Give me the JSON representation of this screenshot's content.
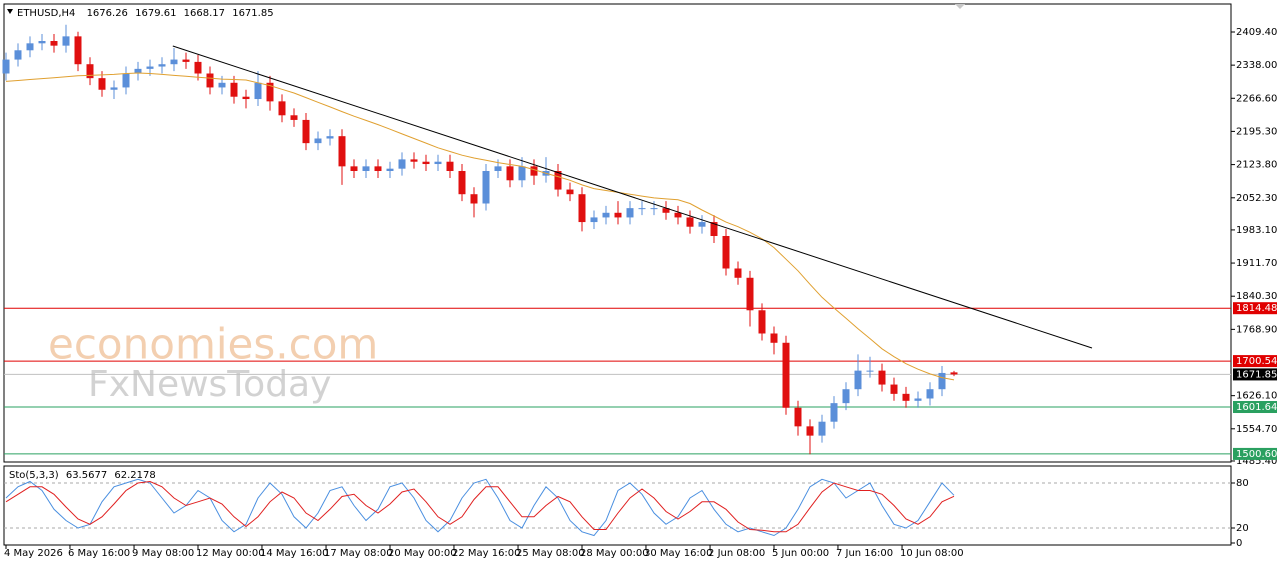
{
  "chart_data": {
    "type": "candlestick",
    "header": {
      "symbol": "ETHUSD,H4",
      "open": 1676.26,
      "high": 1679.61,
      "low": 1668.17,
      "close": 1671.85
    },
    "open": [
      2320,
      2350,
      2370,
      2385,
      2390,
      2380,
      2400,
      2340,
      2310,
      2285,
      2290,
      2320,
      2330,
      2335,
      2340,
      2350,
      2345,
      2320,
      2290,
      2300,
      2270,
      2265,
      2300,
      2260,
      2230,
      2220,
      2170,
      2180,
      2185,
      2120,
      2110,
      2120,
      2110,
      2115,
      2135,
      2130,
      2125,
      2130,
      2110,
      2060,
      2040,
      2110,
      2120,
      2090,
      2120,
      2100,
      2110,
      2070,
      2060,
      2000,
      2010,
      2020,
      2010,
      2030,
      2030,
      2030,
      2020,
      2010,
      1990,
      2000,
      1970,
      1900,
      1880,
      1810,
      1760,
      1740,
      1600,
      1560,
      1540,
      1570,
      1610,
      1640,
      1680,
      1680,
      1650,
      1630,
      1615,
      1620,
      1640,
      1676.26
    ],
    "high": [
      2365,
      2385,
      2400,
      2405,
      2405,
      2425,
      2410,
      2355,
      2325,
      2305,
      2335,
      2345,
      2350,
      2355,
      2375,
      2365,
      2360,
      2335,
      2315,
      2315,
      2285,
      2325,
      2315,
      2275,
      2245,
      2235,
      2195,
      2200,
      2200,
      2135,
      2135,
      2135,
      2130,
      2150,
      2150,
      2145,
      2145,
      2145,
      2125,
      2075,
      2125,
      2135,
      2135,
      2140,
      2135,
      2140,
      2125,
      2085,
      2075,
      2025,
      2035,
      2045,
      2045,
      2045,
      2045,
      2045,
      2035,
      2025,
      2015,
      2015,
      1985,
      1915,
      1895,
      1825,
      1775,
      1755,
      1615,
      1575,
      1585,
      1625,
      1655,
      1715,
      1710,
      1695,
      1665,
      1645,
      1635,
      1655,
      1690,
      1679.61
    ],
    "low": [
      2305,
      2335,
      2355,
      2370,
      2365,
      2365,
      2325,
      2295,
      2270,
      2265,
      2275,
      2305,
      2315,
      2320,
      2325,
      2330,
      2305,
      2275,
      2275,
      2255,
      2245,
      2250,
      2240,
      2215,
      2205,
      2155,
      2155,
      2165,
      2080,
      2095,
      2095,
      2095,
      2095,
      2100,
      2115,
      2110,
      2110,
      2095,
      2045,
      2010,
      2025,
      2095,
      2075,
      2075,
      2080,
      2085,
      2055,
      2045,
      1980,
      1985,
      1995,
      1995,
      1995,
      2015,
      2015,
      2005,
      1995,
      1975,
      1975,
      1955,
      1885,
      1865,
      1775,
      1745,
      1715,
      1585,
      1540,
      1500,
      1525,
      1555,
      1595,
      1625,
      1665,
      1635,
      1615,
      1600,
      1600,
      1605,
      1625,
      1668.17
    ],
    "close": [
      2350,
      2370,
      2385,
      2390,
      2380,
      2400,
      2340,
      2310,
      2285,
      2290,
      2320,
      2330,
      2335,
      2340,
      2350,
      2345,
      2320,
      2290,
      2300,
      2270,
      2265,
      2300,
      2260,
      2230,
      2220,
      2170,
      2180,
      2185,
      2120,
      2110,
      2120,
      2110,
      2115,
      2135,
      2130,
      2125,
      2130,
      2110,
      2060,
      2040,
      2110,
      2120,
      2090,
      2120,
      2100,
      2110,
      2070,
      2060,
      2000,
      2010,
      2020,
      2010,
      2030,
      2030,
      2030,
      2020,
      2010,
      1990,
      2000,
      1970,
      1900,
      1880,
      1810,
      1760,
      1740,
      1600,
      1560,
      1540,
      1570,
      1610,
      1640,
      1680,
      1680,
      1650,
      1630,
      1615,
      1620,
      1640,
      1675,
      1671.85
    ],
    "bull_color": "#5b8fd9",
    "bear_color": "#e01010",
    "ylim": [
      1483.2,
      2469.7
    ],
    "yticks": [
      {
        "value": 2409.4,
        "label": "2409.40"
      },
      {
        "value": 2338,
        "label": "2338.00"
      },
      {
        "value": 2266.6,
        "label": "2266.60"
      },
      {
        "value": 2195.3,
        "label": "2195.30"
      },
      {
        "value": 2123.8,
        "label": "2123.80"
      },
      {
        "value": 2052.3,
        "label": "2052.30"
      },
      {
        "value": 1983.1,
        "label": "1983.10"
      },
      {
        "value": 1911.7,
        "label": "1911.70"
      },
      {
        "value": 1840.3,
        "label": "1840.30"
      },
      {
        "value": 1768.9,
        "label": "1768.90"
      },
      {
        "value": 1626.1,
        "label": "1626.10"
      },
      {
        "value": 1554.7,
        "label": "1554.70"
      },
      {
        "value": 1485.4,
        "label": "1485.40"
      }
    ],
    "xticks": [
      {
        "value": 0,
        "label": "4 May 2026"
      },
      {
        "value": 5.33,
        "label": "6 May 16:00"
      },
      {
        "value": 10.67,
        "label": "9 May 08:00"
      },
      {
        "value": 16,
        "label": "12 May 00:00"
      },
      {
        "value": 21.33,
        "label": "14 May 16:00"
      },
      {
        "value": 26.67,
        "label": "17 May 08:00"
      },
      {
        "value": 32,
        "label": "20 May 00:00"
      },
      {
        "value": 37.33,
        "label": "22 May 16:00"
      },
      {
        "value": 42.67,
        "label": "25 May 08:00"
      },
      {
        "value": 48,
        "label": "28 May 00:00"
      },
      {
        "value": 53.33,
        "label": "30 May 16:00"
      },
      {
        "value": 58.67,
        "label": "2 Jun 08:00"
      },
      {
        "value": 64,
        "label": "5 Jun 00:00"
      },
      {
        "value": 69.33,
        "label": "7 Jun 16:00"
      },
      {
        "value": 74.67,
        "label": "10 Jun 08:00"
      }
    ],
    "ma": {
      "color": "#e0a030",
      "values": [
        2303,
        2305,
        2307,
        2309,
        2311,
        2313,
        2315,
        2316,
        2317,
        2318,
        2320,
        2321,
        2320,
        2318,
        2316,
        2314,
        2312,
        2310,
        2308,
        2307,
        2306,
        2300,
        2294,
        2286,
        2278,
        2268,
        2258,
        2248,
        2238,
        2228,
        2219,
        2210,
        2200,
        2190,
        2180,
        2170,
        2160,
        2152,
        2144,
        2138,
        2133,
        2128,
        2124,
        2120,
        2113,
        2105,
        2098,
        2090,
        2080,
        2072,
        2068,
        2064,
        2060,
        2056,
        2052,
        2050,
        2048,
        2040,
        2026,
        2013,
        2000,
        1990,
        1978,
        1964,
        1945,
        1920,
        1895,
        1866,
        1838,
        1815,
        1793,
        1770,
        1749,
        1727,
        1710,
        1695,
        1683,
        1673,
        1665,
        1660
      ]
    },
    "trendline": {
      "x": [
        13.9,
        90.5
      ],
      "y": [
        2379.2,
        1728.8
      ],
      "color": "#000000"
    },
    "levels": [
      {
        "value": 1814.48,
        "color": "#e00000",
        "label_fill": "#e00000"
      },
      {
        "value": 1700.54,
        "color": "#e00000",
        "label_fill": "#e00000"
      },
      {
        "value": 1671.85,
        "color": "#c0c0c0",
        "label_fill": "#000000"
      },
      {
        "value": 1601.64,
        "color": "#2aa060",
        "label_fill": "#2aa060"
      },
      {
        "value": 1500.6,
        "label": "1500.60",
        "color": "#2aa060",
        "label_fill": "#2aa060"
      }
    ],
    "watermarks": [
      "economies.com",
      "FxNewsToday"
    ],
    "indicator": {
      "name": "Sto(5,3,3)",
      "ylim": [
        0,
        100
      ],
      "yticks": [
        0,
        20,
        80
      ],
      "levels": [
        20,
        80
      ],
      "series": [
        {
          "color": "#4a8fe0",
          "values": [
            60,
            75,
            82,
            70,
            45,
            30,
            20,
            25,
            55,
            75,
            80,
            85,
            80,
            60,
            40,
            50,
            70,
            60,
            30,
            15,
            25,
            60,
            80,
            65,
            35,
            20,
            40,
            70,
            75,
            50,
            30,
            45,
            75,
            80,
            60,
            30,
            15,
            30,
            60,
            80,
            85,
            60,
            30,
            20,
            50,
            75,
            60,
            30,
            15,
            10,
            30,
            70,
            80,
            65,
            40,
            25,
            35,
            60,
            70,
            45,
            25,
            15,
            20,
            15,
            10,
            20,
            45,
            75,
            85,
            80,
            60,
            70,
            80,
            50,
            25,
            20,
            30,
            55,
            80,
            63.5677
          ]
        },
        {
          "color": "#e02020",
          "values": [
            55,
            65,
            75,
            75,
            65,
            48,
            32,
            25,
            35,
            52,
            70,
            80,
            82,
            75,
            60,
            50,
            55,
            60,
            52,
            35,
            22,
            35,
            55,
            68,
            60,
            40,
            30,
            45,
            62,
            65,
            50,
            40,
            52,
            68,
            72,
            55,
            35,
            25,
            35,
            58,
            75,
            75,
            55,
            35,
            35,
            50,
            62,
            55,
            35,
            18,
            18,
            40,
            60,
            72,
            60,
            42,
            32,
            42,
            55,
            55,
            45,
            28,
            18,
            17,
            15,
            15,
            25,
            47,
            68,
            80,
            75,
            70,
            70,
            65,
            50,
            32,
            25,
            35,
            55,
            62.2178
          ]
        }
      ]
    }
  }
}
